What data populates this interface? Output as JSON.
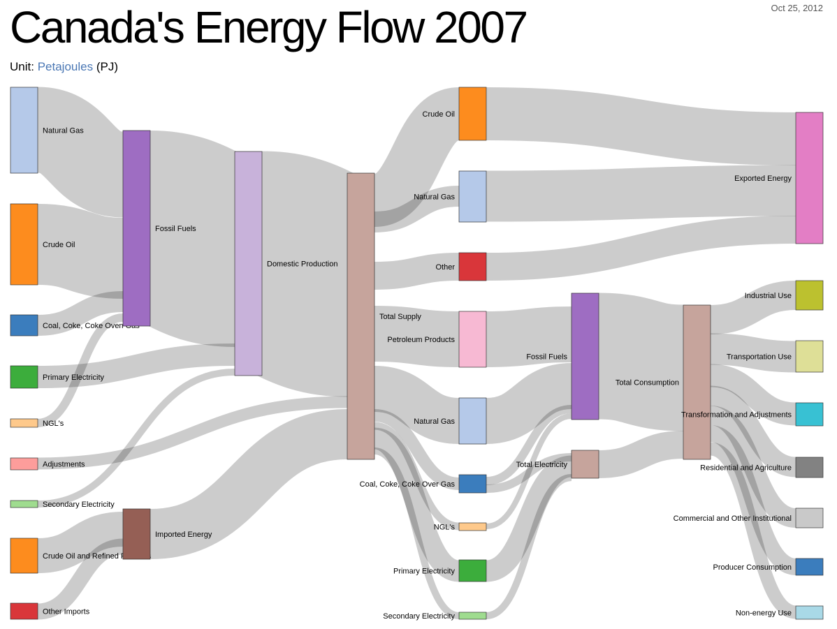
{
  "header": {
    "title": "Canada's Energy Flow 2007",
    "date": "Oct 25, 2012",
    "unit_prefix": "Unit:",
    "unit_link": "Petajoules",
    "unit_suffix": "(PJ)"
  },
  "diagram": {
    "type": "sankey",
    "unit": "PJ",
    "nodes": [
      {
        "id": "ng_src",
        "label": "Natural Gas",
        "color": "#b5c9e9"
      },
      {
        "id": "crude_src",
        "label": "Crude Oil",
        "color": "#fd8c1e"
      },
      {
        "id": "coal_src",
        "label": "Coal, Coke, Coke Oven Gas",
        "color": "#3b7dbd"
      },
      {
        "id": "primelec_src",
        "label": "Primary Electricity",
        "color": "#3cad3c"
      },
      {
        "id": "ngl_src",
        "label": "NGL's",
        "color": "#fec98b"
      },
      {
        "id": "adj_src",
        "label": "Adjustments",
        "color": "#fd9d9b"
      },
      {
        "id": "secelec_src",
        "label": "Secondary Electricity",
        "color": "#9fdc8f"
      },
      {
        "id": "cruderef_src",
        "label": "Crude Oil and Refined Products",
        "color": "#fd8c1e"
      },
      {
        "id": "otherimp_src",
        "label": "Other Imports",
        "color": "#d9363a"
      },
      {
        "id": "fossil1",
        "label": "Fossil Fuels",
        "color": "#9e6dc2"
      },
      {
        "id": "imported",
        "label": "Imported Energy",
        "color": "#955f55"
      },
      {
        "id": "domestic",
        "label": "Domestic Production",
        "color": "#c8b2da"
      },
      {
        "id": "supply",
        "label": "Total Supply",
        "color": "#c6a49c"
      },
      {
        "id": "crude_mid",
        "label": "Crude Oil",
        "color": "#fd8c1e"
      },
      {
        "id": "ng_mid",
        "label": "Natural Gas",
        "color": "#b5c9e9"
      },
      {
        "id": "other_mid",
        "label": "Other",
        "color": "#d9363a"
      },
      {
        "id": "petro",
        "label": "Petroleum Products",
        "color": "#f7b9d3"
      },
      {
        "id": "ng_mid2",
        "label": "Natural Gas",
        "color": "#b5c9e9"
      },
      {
        "id": "coal_mid",
        "label": "Coal, Coke, Coke Over Gas",
        "color": "#3b7dbd"
      },
      {
        "id": "ngl_mid",
        "label": "NGL's",
        "color": "#fec98b"
      },
      {
        "id": "primelec_mid",
        "label": "Primary Electricity",
        "color": "#3cad3c"
      },
      {
        "id": "secelec_mid",
        "label": "Secondary Electricity",
        "color": "#9fdc8f"
      },
      {
        "id": "fossil2",
        "label": "Fossil Fuels",
        "color": "#9e6dc2"
      },
      {
        "id": "totelec",
        "label": "Total Electricity",
        "color": "#c6a49c"
      },
      {
        "id": "totcons",
        "label": "Total Consumption",
        "color": "#c6a49c"
      },
      {
        "id": "exported",
        "label": "Exported Energy",
        "color": "#e37ec5"
      },
      {
        "id": "industrial",
        "label": "Industrial Use",
        "color": "#bcc12f"
      },
      {
        "id": "transport",
        "label": "Transportation Use",
        "color": "#dedf97"
      },
      {
        "id": "transform",
        "label": "Transformation and Adjustments",
        "color": "#38c1d3"
      },
      {
        "id": "residential",
        "label": "Residential and Agriculture",
        "color": "#828282"
      },
      {
        "id": "commercial",
        "label": "Commercial and Other Institutional",
        "color": "#c9c9c9"
      },
      {
        "id": "producer",
        "label": "Producer Consumption",
        "color": "#3b7dbd"
      },
      {
        "id": "nonenergy",
        "label": "Non-energy Use",
        "color": "#a9d9e7"
      }
    ],
    "links": [
      {
        "source": "ng_src",
        "target": "fossil1"
      },
      {
        "source": "crude_src",
        "target": "fossil1"
      },
      {
        "source": "coal_src",
        "target": "fossil1"
      },
      {
        "source": "ngl_src",
        "target": "fossil1"
      },
      {
        "source": "fossil1",
        "target": "domestic"
      },
      {
        "source": "primelec_src",
        "target": "domestic"
      },
      {
        "source": "secelec_src",
        "target": "domestic"
      },
      {
        "source": "domestic",
        "target": "supply"
      },
      {
        "source": "adj_src",
        "target": "supply"
      },
      {
        "source": "cruderef_src",
        "target": "imported"
      },
      {
        "source": "otherimp_src",
        "target": "imported"
      },
      {
        "source": "imported",
        "target": "supply"
      },
      {
        "source": "supply",
        "target": "crude_mid"
      },
      {
        "source": "supply",
        "target": "ng_mid"
      },
      {
        "source": "supply",
        "target": "other_mid"
      },
      {
        "source": "supply",
        "target": "petro"
      },
      {
        "source": "supply",
        "target": "ng_mid2"
      },
      {
        "source": "supply",
        "target": "coal_mid"
      },
      {
        "source": "supply",
        "target": "ngl_mid"
      },
      {
        "source": "supply",
        "target": "primelec_mid"
      },
      {
        "source": "supply",
        "target": "secelec_mid"
      },
      {
        "source": "crude_mid",
        "target": "exported"
      },
      {
        "source": "ng_mid",
        "target": "exported"
      },
      {
        "source": "other_mid",
        "target": "exported"
      },
      {
        "source": "petro",
        "target": "fossil2"
      },
      {
        "source": "ng_mid2",
        "target": "fossil2"
      },
      {
        "source": "coal_mid",
        "target": "fossil2"
      },
      {
        "source": "coal_mid",
        "target": "totelec"
      },
      {
        "source": "ngl_mid",
        "target": "fossil2"
      },
      {
        "source": "primelec_mid",
        "target": "totelec"
      },
      {
        "source": "secelec_mid",
        "target": "totelec"
      },
      {
        "source": "fossil2",
        "target": "totcons"
      },
      {
        "source": "totelec",
        "target": "totcons"
      },
      {
        "source": "totcons",
        "target": "industrial"
      },
      {
        "source": "totcons",
        "target": "transport"
      },
      {
        "source": "totcons",
        "target": "transform"
      },
      {
        "source": "totcons",
        "target": "residential"
      },
      {
        "source": "totcons",
        "target": "commercial"
      },
      {
        "source": "totcons",
        "target": "producer"
      },
      {
        "source": "totcons",
        "target": "nonenergy"
      }
    ]
  }
}
